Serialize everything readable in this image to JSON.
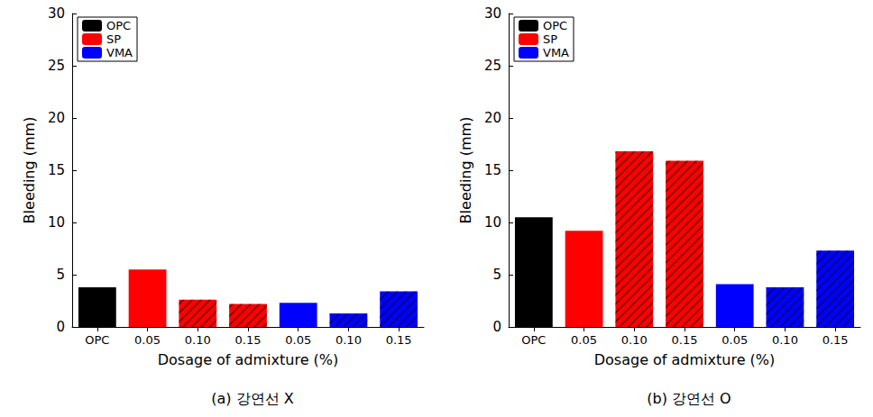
{
  "chart_data": [
    {
      "type": "bar",
      "title": "(a) 강연선 X",
      "x_label": "Dosage of admixture (%)",
      "y_label": "Bleeding (mm)",
      "categories": [
        "OPC",
        "0.05",
        "0.10",
        "0.15",
        "0.05",
        "0.10",
        "0.15"
      ],
      "series": [
        {
          "name": "OPC",
          "color": "#000000",
          "values": [
            3.8,
            null,
            null,
            null,
            null,
            null,
            null
          ]
        },
        {
          "name": "SP",
          "color": "#ff0000",
          "values": [
            null,
            5.5,
            2.6,
            2.2,
            null,
            null,
            null
          ]
        },
        {
          "name": "VMA",
          "color": "#0000ff",
          "values": [
            null,
            null,
            null,
            null,
            2.3,
            1.3,
            3.4
          ]
        }
      ],
      "ylim": [
        0,
        30
      ],
      "yticks": [
        0,
        5,
        10,
        15,
        20,
        25,
        30
      ],
      "grid": false,
      "legend": "upper left"
    },
    {
      "type": "bar",
      "title": "(b) 강연선 O",
      "x_label": "Dosage of admixture (%)",
      "y_label": "Bleeding (mm)",
      "categories": [
        "OPC",
        "0.05",
        "0.10",
        "0.15",
        "0.05",
        "0.10",
        "0.15"
      ],
      "series": [
        {
          "name": "OPC",
          "color": "#000000",
          "values": [
            10.5,
            null,
            null,
            null,
            null,
            null,
            null
          ]
        },
        {
          "name": "SP",
          "color": "#ff0000",
          "values": [
            null,
            9.2,
            16.8,
            15.9,
            null,
            null,
            null
          ]
        },
        {
          "name": "VMA",
          "color": "#0000ff",
          "values": [
            null,
            null,
            null,
            null,
            4.1,
            3.8,
            7.3
          ]
        }
      ],
      "ylim": [
        0,
        30
      ],
      "yticks": [
        0,
        5,
        10,
        15,
        20,
        25,
        30
      ],
      "grid": false,
      "legend": "upper left"
    }
  ]
}
